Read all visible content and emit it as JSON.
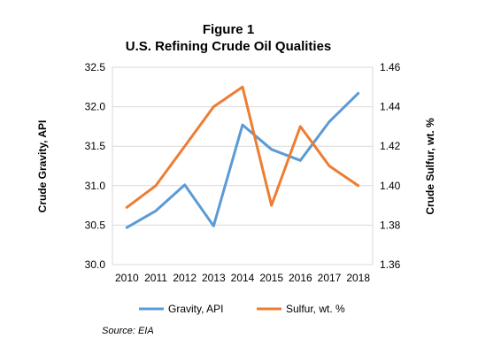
{
  "chart_data": {
    "type": "line",
    "title": "Figure 1",
    "subtitle": "U.S. Refining Crude Oil Qualities",
    "categories": [
      "2010",
      "2011",
      "2012",
      "2013",
      "2014",
      "2015",
      "2016",
      "2017",
      "2018"
    ],
    "ylabel_left": "Crude Gravity, API",
    "ylabel_right": "Crude Sulfur, wt. %",
    "y_left": {
      "min": 30.0,
      "max": 32.5,
      "step": 0.5,
      "decimals": 1,
      "ticks": [
        "30.0",
        "30.5",
        "31.0",
        "31.5",
        "32.0",
        "32.5"
      ]
    },
    "y_right": {
      "min": 1.36,
      "max": 1.46,
      "step": 0.02,
      "decimals": 2,
      "ticks": [
        "1.36",
        "1.38",
        "1.40",
        "1.42",
        "1.44",
        "1.46"
      ]
    },
    "grid": "horizontal",
    "legend_position": "bottom",
    "series": [
      {
        "name": "Gravity, API",
        "axis": "left",
        "color": "#5B9BD5",
        "values": [
          30.47,
          30.68,
          31.01,
          30.49,
          31.77,
          31.46,
          31.32,
          31.81,
          32.17
        ]
      },
      {
        "name": "Sulfur, wt. %",
        "axis": "right",
        "color": "#ED7D31",
        "values": [
          1.389,
          1.4,
          1.42,
          1.44,
          1.45,
          1.39,
          1.43,
          1.41,
          1.4
        ]
      }
    ],
    "source": "Source: EIA"
  }
}
